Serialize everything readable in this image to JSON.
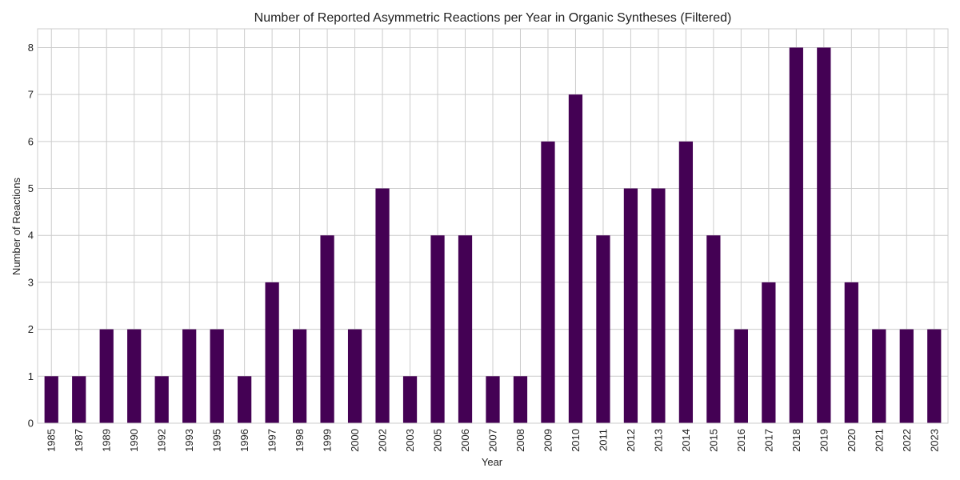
{
  "chart_data": {
    "type": "bar",
    "title": "Number of Reported Asymmetric Reactions per Year in Organic Syntheses (Filtered)",
    "xlabel": "Year",
    "ylabel": "Number of Reactions",
    "categories": [
      "1985",
      "1987",
      "1989",
      "1990",
      "1992",
      "1993",
      "1995",
      "1996",
      "1997",
      "1998",
      "1999",
      "2000",
      "2002",
      "2003",
      "2005",
      "2006",
      "2007",
      "2008",
      "2009",
      "2010",
      "2011",
      "2012",
      "2013",
      "2014",
      "2015",
      "2016",
      "2017",
      "2018",
      "2019",
      "2020",
      "2021",
      "2022",
      "2023"
    ],
    "values": [
      1,
      1,
      2,
      2,
      1,
      2,
      2,
      1,
      3,
      2,
      4,
      2,
      5,
      1,
      4,
      4,
      1,
      1,
      6,
      7,
      4,
      5,
      5,
      6,
      4,
      2,
      3,
      8,
      8,
      3,
      2,
      2,
      2
    ],
    "yticks": [
      0,
      1,
      2,
      3,
      4,
      5,
      6,
      7,
      8
    ],
    "ylim": [
      0,
      8.4
    ],
    "grid": true,
    "bar_color": "#440154"
  }
}
